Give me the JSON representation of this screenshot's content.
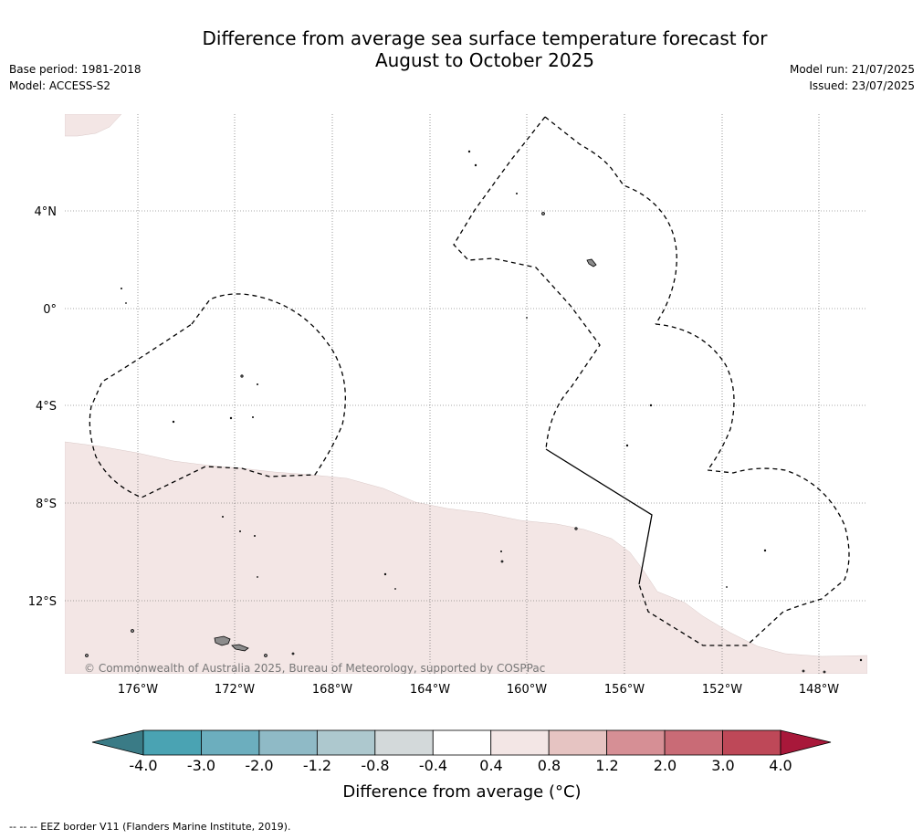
{
  "header": {
    "title_line1": "Difference from average sea surface temperature forecast for",
    "title_line2": "August to October 2025",
    "base_period": "Base period: 1981-2018",
    "model": "Model: ACCESS-S2",
    "model_run": "Model run: 21/07/2025",
    "issued": "Issued: 23/07/2025"
  },
  "map": {
    "lat_labels": [
      "4°N",
      "0°",
      "4°S",
      "8°S",
      "12°S"
    ],
    "lon_labels": [
      "176°W",
      "172°W",
      "168°W",
      "164°W",
      "160°W",
      "156°W",
      "152°W",
      "148°W"
    ],
    "copyright": "© Commonwealth of Australia 2025, Bureau of Meteorology, supported by COSPPac",
    "anomaly_region_class": "0.4 to 0.8",
    "anomaly_region_color": "#f3e6e5",
    "ocean_color": "#ffffff",
    "land_color": "#8c8c8c"
  },
  "colorbar": {
    "title": "Difference from average (°C)",
    "tick_labels": [
      "-4.0",
      "-3.0",
      "-2.0",
      "-1.2",
      "-0.8",
      "-0.4",
      "0.4",
      "0.8",
      "1.2",
      "2.0",
      "3.0",
      "4.0"
    ],
    "low_extend_color": "#3a7b86",
    "high_extend_color": "#a8183a",
    "colors": [
      "#4aa3b3",
      "#6caebe",
      "#8fbac6",
      "#adc8ce",
      "#d3d9da",
      "#ffffff",
      "#f3e6e5",
      "#e6c4c2",
      "#d68f95",
      "#c96b76",
      "#be4858"
    ]
  },
  "footnote": "--  --  -- EEZ border V11 (Flanders Marine Institute, 2019)."
}
